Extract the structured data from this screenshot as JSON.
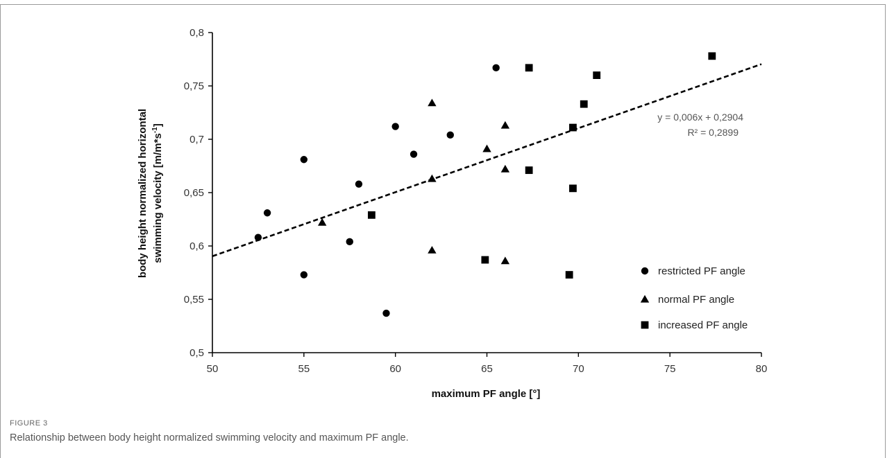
{
  "figure": {
    "label": "FIGURE 3",
    "caption": "Relationship between body height normalized swimming velocity and maximum PF angle."
  },
  "chart_data": {
    "type": "scatter",
    "xlabel": "maximum PF angle [°]",
    "ylabel_line1": "body height normalized  horizontal",
    "ylabel_line2": "swimming velocity [m/m*s",
    "ylabel_sup": "-1",
    "ylabel_end": "]",
    "xlim": [
      50,
      80
    ],
    "ylim": [
      0.5,
      0.8
    ],
    "x_ticks": [
      50,
      55,
      60,
      65,
      70,
      75,
      80
    ],
    "x_tick_labels": [
      "50",
      "55",
      "60",
      "65",
      "70",
      "75",
      "80"
    ],
    "y_ticks": [
      0.5,
      0.55,
      0.6,
      0.65,
      0.7,
      0.75,
      0.8
    ],
    "y_tick_labels": [
      "0,5",
      "0,55",
      "0,6",
      "0,65",
      "0,7",
      "0,75",
      "0,8"
    ],
    "grid": false,
    "legend_position": "bottom-right",
    "series": [
      {
        "name": "restricted PF angle",
        "marker": "circle",
        "points": [
          {
            "x": 52.5,
            "y": 0.608
          },
          {
            "x": 53.0,
            "y": 0.631
          },
          {
            "x": 55.0,
            "y": 0.681
          },
          {
            "x": 55.0,
            "y": 0.573
          },
          {
            "x": 57.5,
            "y": 0.604
          },
          {
            "x": 58.0,
            "y": 0.658
          },
          {
            "x": 59.5,
            "y": 0.537
          },
          {
            "x": 60.0,
            "y": 0.712
          },
          {
            "x": 61.0,
            "y": 0.686
          },
          {
            "x": 63.0,
            "y": 0.704
          },
          {
            "x": 65.5,
            "y": 0.767
          }
        ]
      },
      {
        "name": "normal PF angle",
        "marker": "triangle",
        "points": [
          {
            "x": 56.0,
            "y": 0.622
          },
          {
            "x": 62.0,
            "y": 0.734
          },
          {
            "x": 62.0,
            "y": 0.663
          },
          {
            "x": 62.0,
            "y": 0.596
          },
          {
            "x": 65.0,
            "y": 0.691
          },
          {
            "x": 66.0,
            "y": 0.713
          },
          {
            "x": 66.0,
            "y": 0.672
          },
          {
            "x": 66.0,
            "y": 0.586
          }
        ]
      },
      {
        "name": "increased PF angle",
        "marker": "square",
        "points": [
          {
            "x": 58.7,
            "y": 0.629
          },
          {
            "x": 64.9,
            "y": 0.587
          },
          {
            "x": 67.3,
            "y": 0.767
          },
          {
            "x": 67.3,
            "y": 0.671
          },
          {
            "x": 69.5,
            "y": 0.573
          },
          {
            "x": 69.7,
            "y": 0.711
          },
          {
            "x": 69.7,
            "y": 0.654
          },
          {
            "x": 70.3,
            "y": 0.733
          },
          {
            "x": 71.0,
            "y": 0.76
          },
          {
            "x": 77.3,
            "y": 0.778
          }
        ]
      }
    ],
    "trendline": {
      "slope": 0.006,
      "intercept": 0.2904,
      "style": "dashed",
      "equation_label": "y = 0,006x + 0,2904",
      "r2_label": "R² = 0,2899"
    },
    "colors": {
      "marker": "#000000",
      "axis": "#000000",
      "trendline": "#000000"
    }
  }
}
